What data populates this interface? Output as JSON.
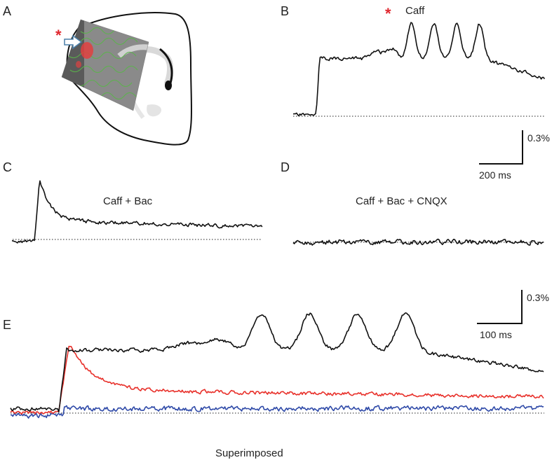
{
  "panels": {
    "A": {
      "label": "A"
    },
    "B": {
      "label": "B",
      "marker": "*",
      "condition": "Caff",
      "scale_y": "0.3%",
      "scale_x": "200 ms"
    },
    "C": {
      "label": "C",
      "condition": "Caff + Bac"
    },
    "D": {
      "label": "D",
      "condition": "Caff + Bac + CNQX"
    },
    "E": {
      "label": "E",
      "scale_y": "0.3%",
      "scale_x": "100 ms",
      "caption": "Superimposed"
    }
  },
  "colors": {
    "caff": "#111111",
    "caff_bac": "#e8302a",
    "caff_bac_cnqx": "#2f4aa8",
    "stim_marker": "#e0282f",
    "arrow": "#4a7fa8"
  },
  "icons": {
    "stimulation_arrow": "arrow-right-outline-icon",
    "slice": "brain-slice-outline"
  }
}
